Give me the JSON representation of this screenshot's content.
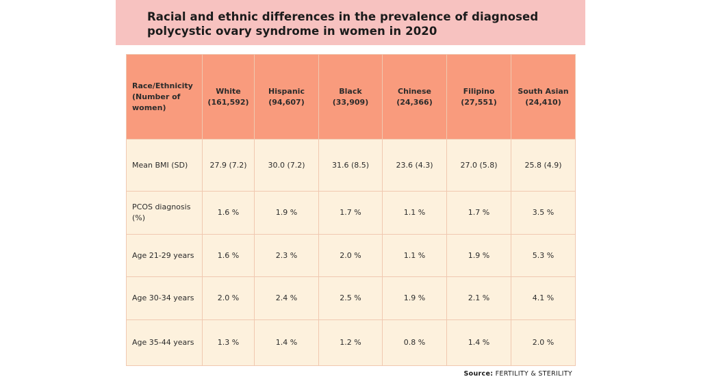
{
  "title": "Racial and ethnic differences in the prevalence of diagnosed polycystic ovary syndrome in women in 2020",
  "source": {
    "label": "Source:",
    "value": "FERTILITY & STERILITY"
  },
  "colors": {
    "banner": "#f7c2c0",
    "header": "#f99b7d",
    "cell": "#fdf1dd",
    "border": "#f0c8b0"
  },
  "chart_data": {
    "type": "table",
    "title": "Racial and ethnic differences in the prevalence of diagnosed polycystic ovary syndrome in women in 2020",
    "header_label": {
      "line1": "Race/Ethnicity",
      "line2": "(Number of",
      "line3": "women)"
    },
    "columns": [
      {
        "name": "White",
        "count": "(161,592)"
      },
      {
        "name": "Hispanic",
        "count": "(94,607)"
      },
      {
        "name": "Black",
        "count": "(33,909)"
      },
      {
        "name": "Chinese",
        "count": "(24,366)"
      },
      {
        "name": "Filipino",
        "count": "(27,551)"
      },
      {
        "name": "South Asian",
        "count": "(24,410)"
      }
    ],
    "rows": [
      {
        "label": "Mean BMI (SD)",
        "values": [
          "27.9 (7.2)",
          "30.0 (7.2)",
          "31.6 (8.5)",
          "23.6 (4.3)",
          "27.0 (5.8)",
          "25.8 (4.9)"
        ]
      },
      {
        "label": "PCOS diagnosis (%)",
        "values": [
          "1.6 %",
          "1.9 %",
          "1.7 %",
          "1.1 %",
          "1.7 %",
          "3.5 %"
        ]
      },
      {
        "label": "Age 21-29 years",
        "values": [
          "1.6 %",
          "2.3 %",
          "2.0 %",
          "1.1 %",
          "1.9 %",
          "5.3 %"
        ]
      },
      {
        "label": "Age 30-34 years",
        "values": [
          "2.0 %",
          "2.4 %",
          "2.5 %",
          "1.9 %",
          "2.1 %",
          "4.1 %"
        ]
      },
      {
        "label": "Age 35-44 years",
        "values": [
          "1.3 %",
          "1.4 %",
          "1.2 %",
          "0.8 %",
          "1.4 %",
          "2.0 %"
        ]
      }
    ]
  }
}
